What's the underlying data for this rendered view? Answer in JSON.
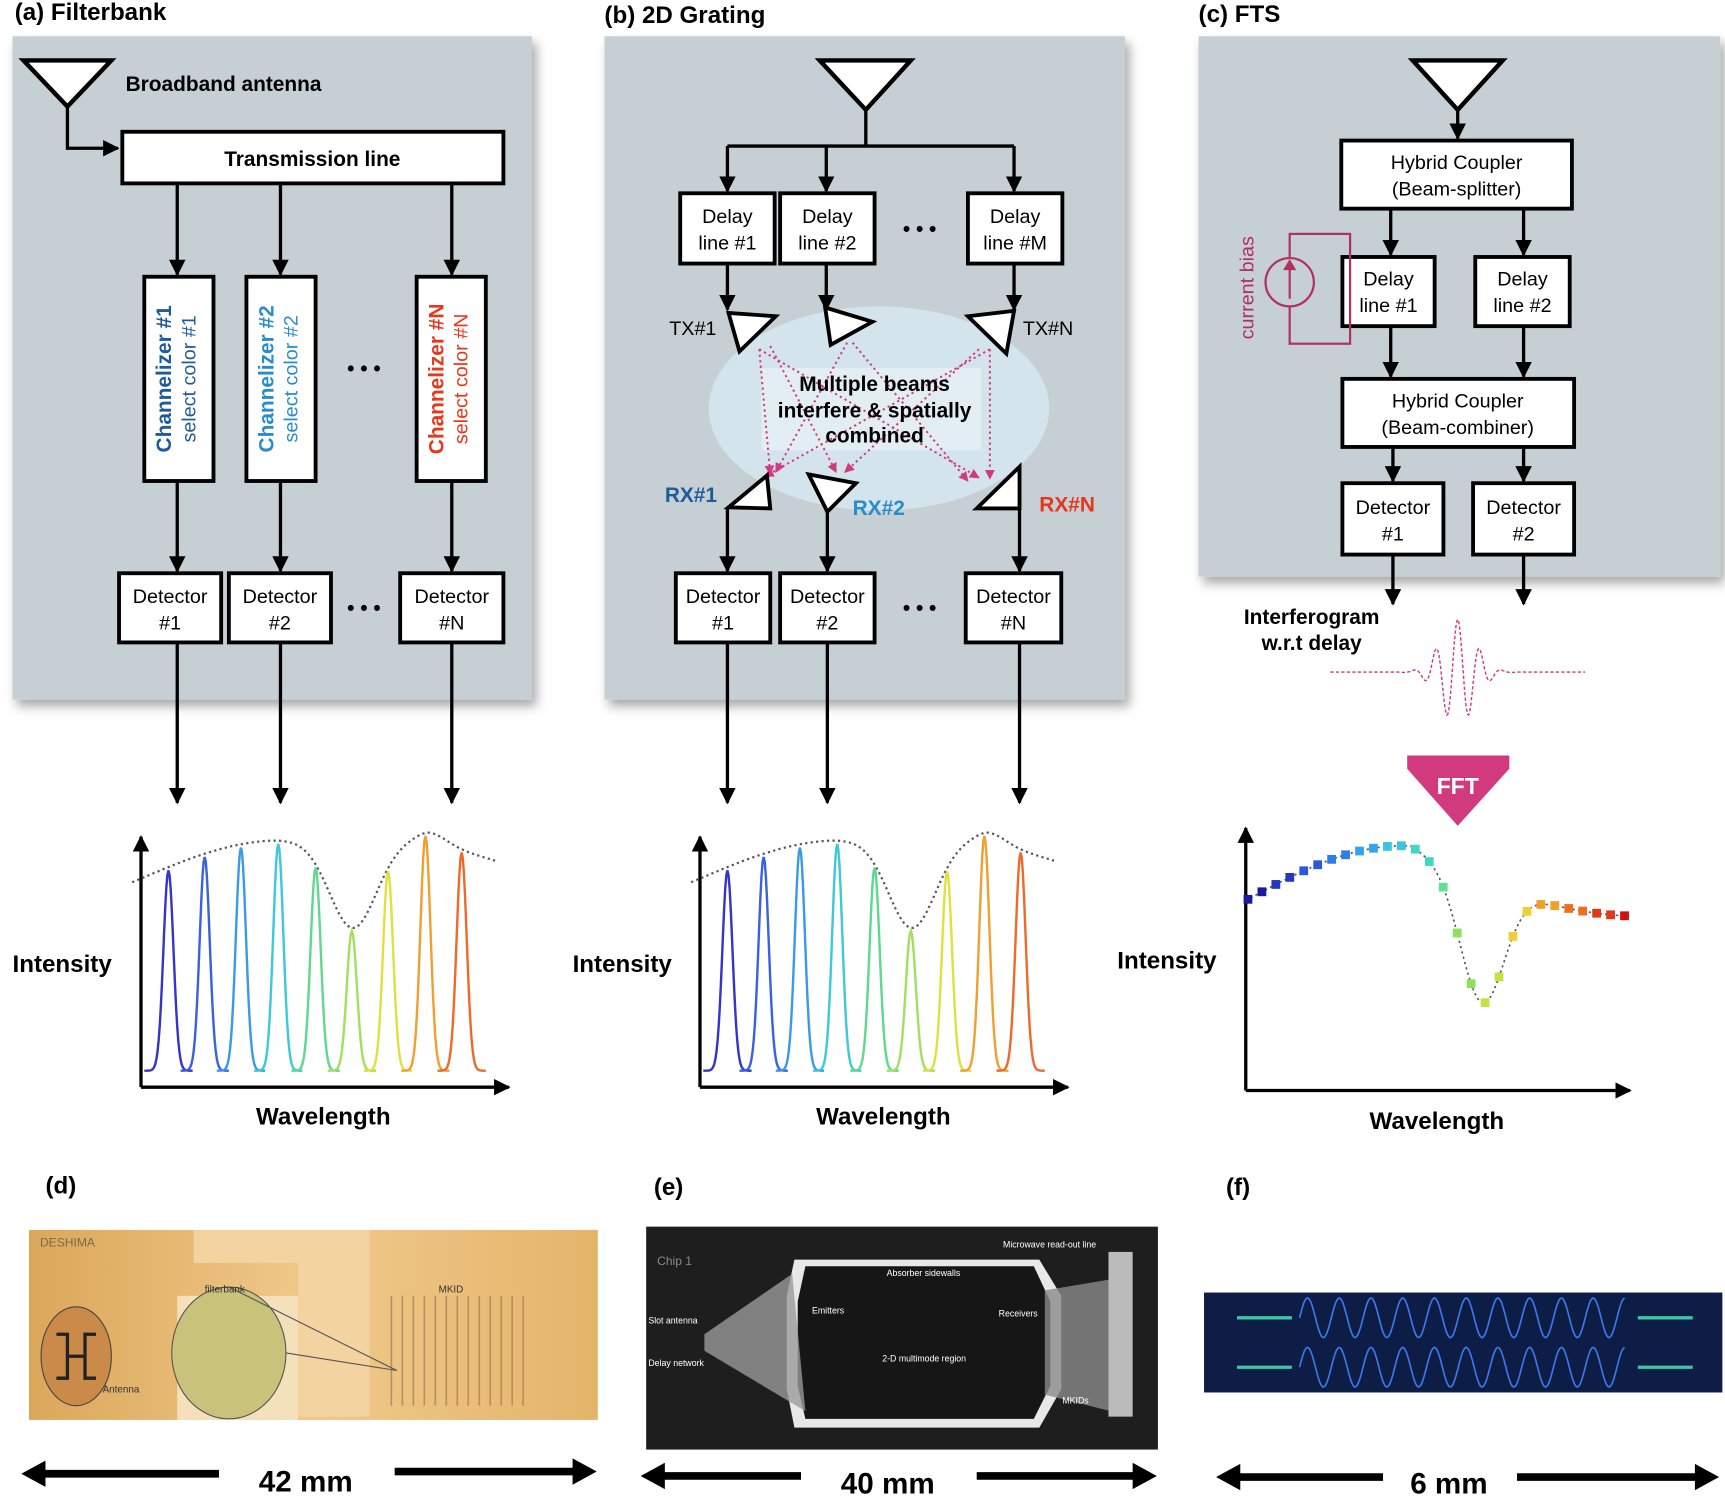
{
  "panel_a": {
    "title": "(a) Filterbank",
    "antenna_label": "Broadband antenna",
    "transmission_line": "Transmission line",
    "channelizers": [
      {
        "line1": "Channelizer #1",
        "line2": "select color #1",
        "color": "#1f5b9a"
      },
      {
        "line1": "Channelizer #2",
        "line2": "select color #2",
        "color": "#2b8ccc"
      },
      {
        "line1": "Channelizer #N",
        "line2": "select color #N",
        "color": "#e8361c"
      }
    ],
    "detectors": [
      {
        "line1": "Detector",
        "line2": "#1"
      },
      {
        "line1": "Detector",
        "line2": "#2"
      },
      {
        "line1": "Detector",
        "line2": "#N"
      }
    ],
    "ellipsis": "• • •",
    "ylabel": "Intensity",
    "xlabel": "Wavelength"
  },
  "panel_b": {
    "title": "(b) 2D Grating",
    "delay_lines": [
      {
        "line1": "Delay",
        "line2": "line #1"
      },
      {
        "line1": "Delay",
        "line2": "line #2"
      },
      {
        "line1": "Delay",
        "line2": "line #M"
      }
    ],
    "tx": [
      "TX#1",
      "TX#N"
    ],
    "rx": [
      {
        "label": "RX#1",
        "color": "#1f5b9a"
      },
      {
        "label": "RX#2",
        "color": "#2b8ccc"
      },
      {
        "label": "RX#N",
        "color": "#e8361c"
      }
    ],
    "center_text": [
      "Multiple beams",
      "interfere & spatially",
      "combined"
    ],
    "detectors": [
      {
        "line1": "Detector",
        "line2": "#1"
      },
      {
        "line1": "Detector",
        "line2": "#2"
      },
      {
        "line1": "Detector",
        "line2": "#N"
      }
    ],
    "ellipsis": "• • •",
    "ylabel": "Intensity",
    "xlabel": "Wavelength"
  },
  "panel_c": {
    "title": "(c) FTS",
    "splitter": {
      "line1": "Hybrid Coupler",
      "line2": "(Beam-splitter)"
    },
    "delay_lines": [
      {
        "line1": "Delay",
        "line2": "line #1"
      },
      {
        "line1": "Delay",
        "line2": "line #2"
      }
    ],
    "current_bias": "current bias",
    "combiner": {
      "line1": "Hybrid Coupler",
      "line2": "(Beam-combiner)"
    },
    "detectors": [
      {
        "line1": "Detector",
        "line2": "#1"
      },
      {
        "line1": "Detector",
        "line2": "#2"
      }
    ],
    "interferogram": [
      "Interferogram",
      "w.r.t delay"
    ],
    "fft": "FFT",
    "ylabel": "Intensity",
    "xlabel": "Wavelength"
  },
  "panel_d": {
    "label": "(d)",
    "photo_text": [
      "DESHIMA",
      "filterbank",
      "MKID",
      "Antenna"
    ],
    "scale": "42 mm"
  },
  "panel_e": {
    "label": "(e)",
    "photo_text": [
      "Chip 1",
      "Microwave read-out line",
      "Absorber sidewalls",
      "Emitters",
      "Receivers",
      "Slot antenna",
      "Delay network",
      "2-D multimode region",
      "MKIDs"
    ],
    "scale": "40 mm"
  },
  "panel_f": {
    "label": "(f)",
    "scale": "6 mm"
  },
  "colors": {
    "panel_bg": "#c6cfd4",
    "magenta": "#d13a7c",
    "bias": "#b03060",
    "spectrum": [
      "#3535c8",
      "#3a62de",
      "#3a9ae6",
      "#3ec8d8",
      "#5fd890",
      "#a2e060",
      "#e0e040",
      "#f0a030",
      "#ee6a2c"
    ]
  }
}
